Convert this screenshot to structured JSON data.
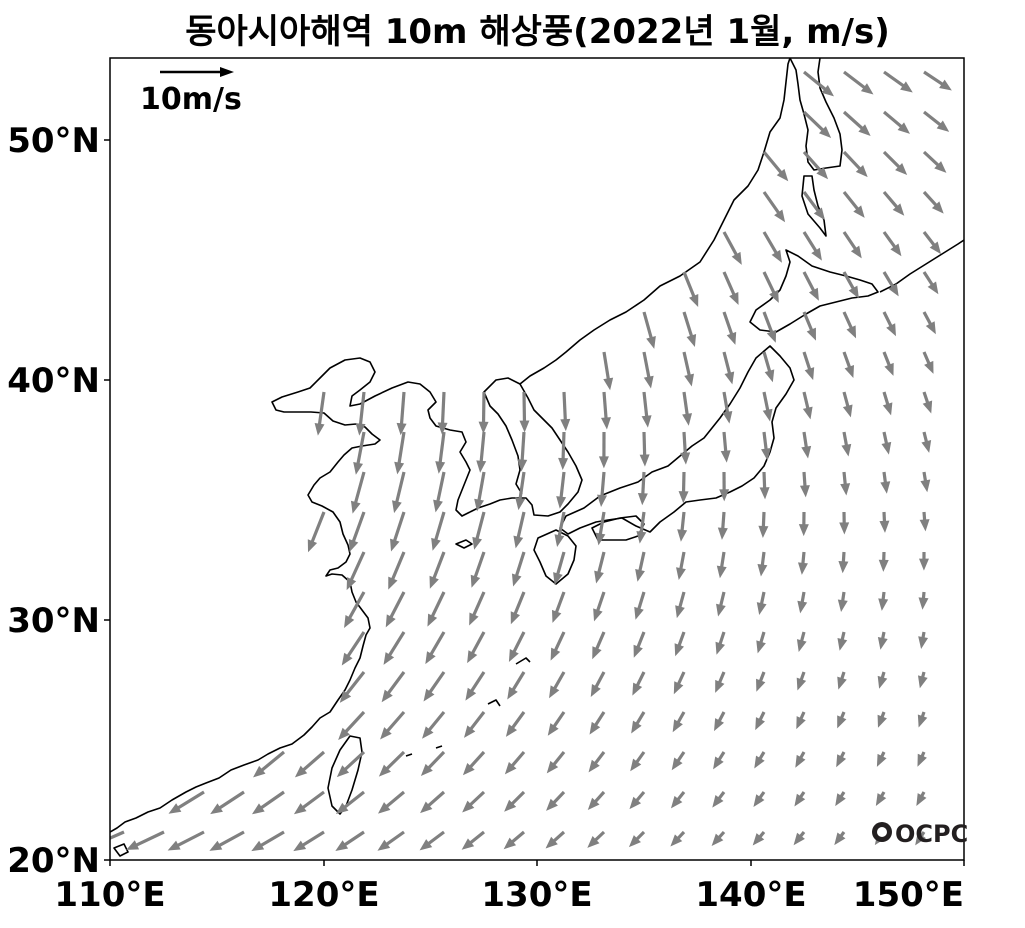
{
  "title": "동아시아해역 10m 해상풍(2022년 1월, m/s)",
  "reference_vector": {
    "label": "10m/s",
    "speed_ms": 10
  },
  "logo": {
    "text": "OCPC",
    "icon_name": "ocpc-logo-icon"
  },
  "colors": {
    "wind_arrow": "#808080",
    "coastline": "#000000",
    "background": "#ffffff"
  },
  "axes": {
    "x_ticks": [
      "110°E",
      "120°E",
      "130°E",
      "140°E",
      "150°E"
    ],
    "y_ticks": [
      "20°N",
      "30°N",
      "40°N",
      "50°N"
    ],
    "lon_range": [
      110,
      150
    ],
    "lat_range": [
      20,
      53.3
    ]
  }
}
